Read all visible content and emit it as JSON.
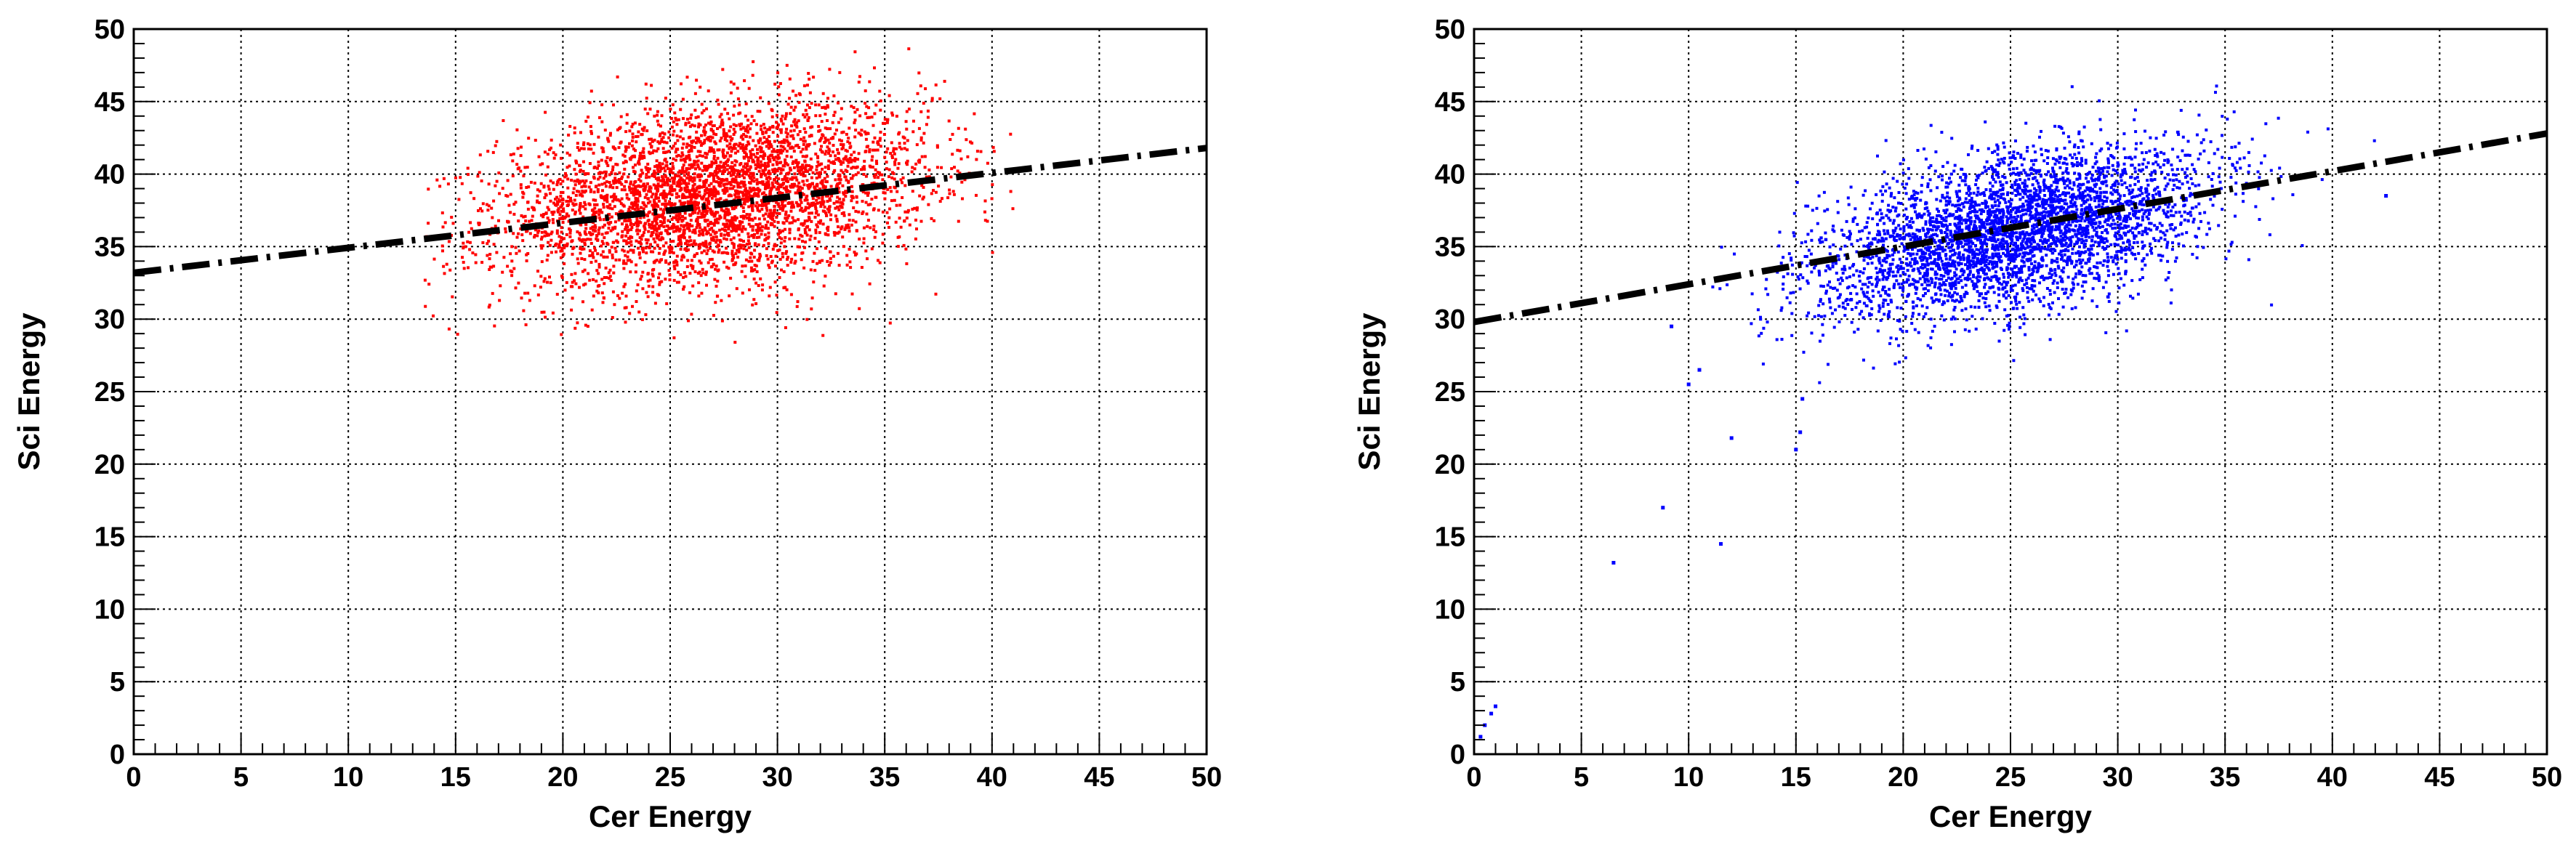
{
  "chart_data": [
    {
      "type": "scatter",
      "xlabel": "Cer Energy",
      "ylabel": "Sci Energy",
      "xlim": [
        0,
        50
      ],
      "ylim": [
        0,
        50
      ],
      "xticks": [
        "0",
        "5",
        "10",
        "15",
        "20",
        "25",
        "30",
        "35",
        "40",
        "45",
        "50"
      ],
      "yticks": [
        "0",
        "5",
        "10",
        "15",
        "20",
        "25",
        "30",
        "35",
        "40",
        "45",
        "50"
      ],
      "grid": true,
      "point_color": "#ff0000",
      "cloud": {
        "x_center": 27,
        "x_sd": 5.0,
        "x_min": 13.5,
        "x_max": 41,
        "y_center": 38.5,
        "y_sd": 3.0,
        "y_min": 27,
        "y_max": 49,
        "slope": 0.18
      },
      "fit_line": {
        "x": [
          0,
          50
        ],
        "y": [
          33.2,
          41.8
        ],
        "color": "#000000",
        "style": "dash-dot"
      }
    },
    {
      "type": "scatter",
      "xlabel": "Cer Energy",
      "ylabel": "Sci Energy",
      "xlim": [
        0,
        50
      ],
      "ylim": [
        0,
        50
      ],
      "xticks": [
        "0",
        "5",
        "10",
        "15",
        "20",
        "25",
        "30",
        "35",
        "40",
        "45",
        "50"
      ],
      "yticks": [
        "0",
        "5",
        "10",
        "15",
        "20",
        "25",
        "30",
        "35",
        "40",
        "45",
        "50"
      ],
      "grid": true,
      "point_color": "#0000ff",
      "cloud": {
        "x_center": 25,
        "x_sd": 4.5,
        "x_min": 11,
        "x_max": 43,
        "y_center": 36,
        "y_sd": 2.6,
        "y_min": 24,
        "y_max": 47,
        "slope": 0.3
      },
      "outliers": [
        {
          "x": 0.3,
          "y": 1.2
        },
        {
          "x": 0.5,
          "y": 2.0
        },
        {
          "x": 0.8,
          "y": 2.8
        },
        {
          "x": 1.0,
          "y": 3.3
        },
        {
          "x": 6.5,
          "y": 13.2
        },
        {
          "x": 8.8,
          "y": 17.0
        },
        {
          "x": 11.5,
          "y": 14.5
        },
        {
          "x": 12.0,
          "y": 21.8
        },
        {
          "x": 15.0,
          "y": 21.0
        },
        {
          "x": 15.2,
          "y": 22.2
        },
        {
          "x": 15.3,
          "y": 24.5
        },
        {
          "x": 10.0,
          "y": 25.5
        },
        {
          "x": 9.2,
          "y": 29.5
        },
        {
          "x": 10.5,
          "y": 26.5
        },
        {
          "x": 42.5,
          "y": 38.5
        }
      ],
      "fit_line": {
        "x": [
          0,
          50
        ],
        "y": [
          29.8,
          42.8
        ],
        "color": "#000000",
        "style": "dash-dot"
      }
    }
  ]
}
